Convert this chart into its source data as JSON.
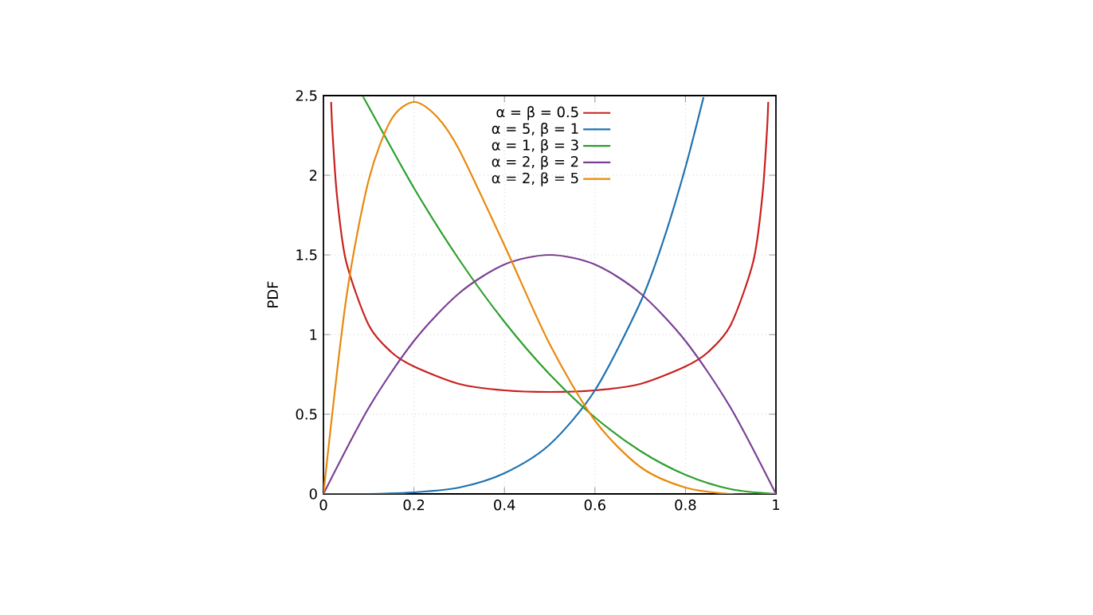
{
  "chart_data": {
    "type": "line",
    "ylabel": "PDF",
    "xlim": [
      0,
      1
    ],
    "ylim": [
      0,
      2.5
    ],
    "xticks": [
      0,
      0.2,
      0.4,
      0.6,
      0.8,
      1
    ],
    "yticks": [
      0,
      0.5,
      1,
      1.5,
      2,
      2.5
    ],
    "grid": true,
    "legend": "top",
    "marker": "none",
    "line_style": "solid",
    "series": [
      {
        "name": "α = β = 0.5",
        "color": "#c8201e",
        "x": [
          0.017,
          0.02,
          0.03,
          0.05,
          0.1,
          0.15,
          0.2,
          0.3,
          0.4,
          0.5,
          0.6,
          0.7,
          0.8,
          0.85,
          0.9,
          0.95,
          0.97,
          0.98,
          0.983
        ],
        "values": [
          2.46,
          2.27,
          1.87,
          1.46,
          1.06,
          0.89,
          0.8,
          0.69,
          0.65,
          0.64,
          0.65,
          0.69,
          0.8,
          0.89,
          1.06,
          1.46,
          1.87,
          2.27,
          2.46
        ]
      },
      {
        "name": "α = 5, β = 1",
        "color": "#1f72b0",
        "x": [
          0,
          0.1,
          0.2,
          0.3,
          0.4,
          0.5,
          0.6,
          0.7,
          0.75,
          0.8,
          0.84
        ],
        "values": [
          0,
          0,
          0.01,
          0.04,
          0.13,
          0.31,
          0.65,
          1.2,
          1.58,
          2.05,
          2.49
        ]
      },
      {
        "name": "α = 1, β = 3",
        "color": "#2ca02c",
        "x": [
          0.088,
          0.1,
          0.2,
          0.3,
          0.4,
          0.5,
          0.6,
          0.7,
          0.8,
          0.9,
          1
        ],
        "values": [
          2.49,
          2.43,
          1.92,
          1.47,
          1.08,
          0.75,
          0.48,
          0.27,
          0.12,
          0.03,
          0
        ]
      },
      {
        "name": "α = 2, β = 2",
        "color": "#7b3f94",
        "x": [
          0,
          0.1,
          0.2,
          0.3,
          0.4,
          0.5,
          0.6,
          0.7,
          0.8,
          0.9,
          1
        ],
        "values": [
          0,
          0.54,
          0.96,
          1.26,
          1.44,
          1.5,
          1.44,
          1.26,
          0.96,
          0.54,
          0
        ]
      },
      {
        "name": "α = 2, β = 5",
        "color": "#e8890c",
        "x": [
          0,
          0.05,
          0.1,
          0.15,
          0.2,
          0.25,
          0.3,
          0.4,
          0.5,
          0.6,
          0.7,
          0.8,
          0.9,
          1
        ],
        "values": [
          0,
          1.22,
          1.97,
          2.35,
          2.46,
          2.37,
          2.16,
          1.56,
          0.94,
          0.46,
          0.17,
          0.04,
          0,
          0
        ]
      }
    ]
  }
}
